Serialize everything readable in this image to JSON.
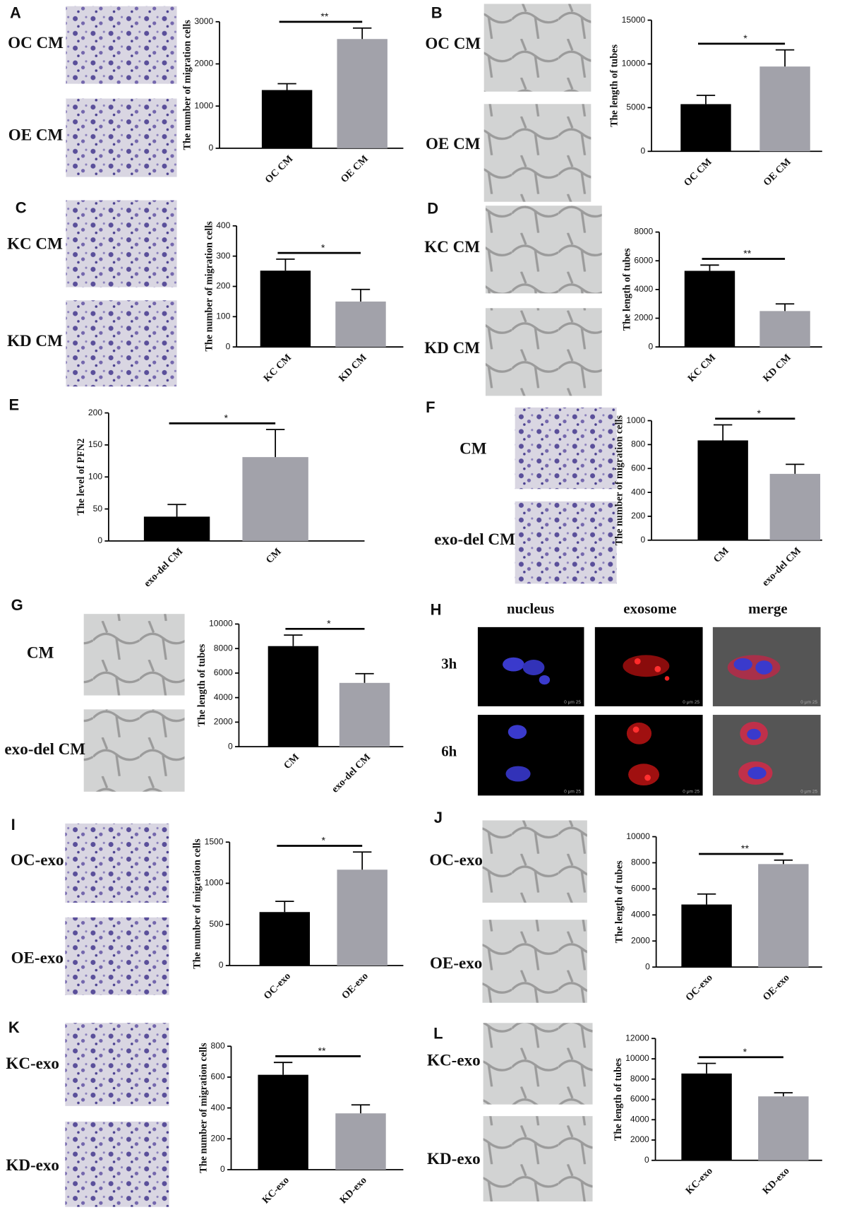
{
  "chart_data": [
    {
      "type": "bar",
      "panel": "A",
      "image_labels": [
        "OC CM",
        "OE CM"
      ],
      "y_label": "The number of migration cells",
      "categories": [
        "OC CM",
        "OE CM"
      ],
      "values": [
        1380,
        2590
      ],
      "errors": [
        150,
        260
      ],
      "colors": [
        "#000000",
        "#a2a2aa"
      ],
      "ylim": [
        0,
        3000
      ],
      "yticks": [
        0,
        1000,
        2000,
        3000
      ],
      "significance": "**"
    },
    {
      "type": "bar",
      "panel": "B",
      "image_labels": [
        "OC CM",
        "OE CM"
      ],
      "y_label": "The length of tubes",
      "categories": [
        "OC CM",
        "OE CM"
      ],
      "values": [
        5400,
        9700
      ],
      "errors": [
        1000,
        1900
      ],
      "colors": [
        "#000000",
        "#a2a2aa"
      ],
      "ylim": [
        0,
        15000
      ],
      "yticks": [
        0,
        5000,
        10000,
        15000
      ],
      "significance": "*"
    },
    {
      "type": "bar",
      "panel": "C",
      "image_labels": [
        "KC CM",
        "KD CM"
      ],
      "y_label": "The number of migration cells",
      "categories": [
        "KC CM",
        "KD CM"
      ],
      "values": [
        252,
        150
      ],
      "errors": [
        38,
        40
      ],
      "colors": [
        "#000000",
        "#a2a2aa"
      ],
      "ylim": [
        0,
        400
      ],
      "yticks": [
        0,
        100,
        200,
        300,
        400
      ],
      "significance": "*"
    },
    {
      "type": "bar",
      "panel": "D",
      "image_labels": [
        "KC CM",
        "KD CM"
      ],
      "y_label": "The length of tubes",
      "categories": [
        "KC CM",
        "KD CM"
      ],
      "values": [
        5300,
        2500
      ],
      "errors": [
        400,
        500
      ],
      "colors": [
        "#000000",
        "#a2a2aa"
      ],
      "ylim": [
        0,
        8000
      ],
      "yticks": [
        0,
        2000,
        4000,
        6000,
        8000
      ],
      "significance": "**"
    },
    {
      "type": "bar",
      "panel": "E",
      "image_labels": [],
      "y_label": "The level of PFN2",
      "categories": [
        "exo-del CM",
        "CM"
      ],
      "values": [
        38,
        131
      ],
      "errors": [
        19,
        43
      ],
      "colors": [
        "#000000",
        "#a2a2aa"
      ],
      "ylim": [
        0,
        200
      ],
      "yticks": [
        0,
        50,
        100,
        150,
        200
      ],
      "significance": "*"
    },
    {
      "type": "bar",
      "panel": "F",
      "image_labels": [
        "CM",
        "exo-del CM"
      ],
      "y_label": "The number of migration cells",
      "categories": [
        "CM",
        "exo-del CM"
      ],
      "values": [
        835,
        555
      ],
      "errors": [
        130,
        80
      ],
      "colors": [
        "#000000",
        "#a2a2aa"
      ],
      "ylim": [
        0,
        1000
      ],
      "yticks": [
        0,
        200,
        400,
        600,
        800,
        1000
      ],
      "significance": "*"
    },
    {
      "type": "bar",
      "panel": "G",
      "image_labels": [
        "CM",
        "exo-del CM"
      ],
      "y_label": "The length of tubes",
      "categories": [
        "CM",
        "exo-del CM"
      ],
      "values": [
        8200,
        5200
      ],
      "errors": [
        900,
        750
      ],
      "colors": [
        "#000000",
        "#a2a2aa"
      ],
      "ylim": [
        0,
        10000
      ],
      "yticks": [
        0,
        2000,
        4000,
        6000,
        8000,
        10000
      ],
      "significance": "*"
    },
    {
      "type": "bar",
      "panel": "I",
      "image_labels": [
        "OC-exo",
        "OE-exo"
      ],
      "y_label": "The number of migration cells",
      "categories": [
        "OC-exo",
        "OE-exo"
      ],
      "values": [
        650,
        1165
      ],
      "errors": [
        130,
        215
      ],
      "colors": [
        "#000000",
        "#a2a2aa"
      ],
      "ylim": [
        0,
        1500
      ],
      "yticks": [
        0,
        500,
        1000,
        1500
      ],
      "significance": "*"
    },
    {
      "type": "bar",
      "panel": "J",
      "image_labels": [
        "OC-exo",
        "OE-exo"
      ],
      "y_label": "The length of tubes",
      "categories": [
        "OC-exo",
        "OE-exo"
      ],
      "values": [
        4800,
        7900
      ],
      "errors": [
        800,
        300
      ],
      "colors": [
        "#000000",
        "#a2a2aa"
      ],
      "ylim": [
        0,
        10000
      ],
      "yticks": [
        0,
        2000,
        4000,
        6000,
        8000,
        10000
      ],
      "significance": "**"
    },
    {
      "type": "bar",
      "panel": "K",
      "image_labels": [
        "KC-exo",
        "KD-exo"
      ],
      "y_label": "The number of migration cells",
      "categories": [
        "KC-exo",
        "KD-exo"
      ],
      "values": [
        615,
        365
      ],
      "errors": [
        80,
        55
      ],
      "colors": [
        "#000000",
        "#a2a2aa"
      ],
      "ylim": [
        0,
        800
      ],
      "yticks": [
        0,
        200,
        400,
        600,
        800
      ],
      "significance": "**"
    },
    {
      "type": "bar",
      "panel": "L",
      "image_labels": [
        "KC-exo",
        "KD-exo"
      ],
      "y_label": "The length of tubes",
      "categories": [
        "KC-exo",
        "KD-exo"
      ],
      "values": [
        8550,
        6300
      ],
      "errors": [
        1000,
        350
      ],
      "colors": [
        "#000000",
        "#a2a2aa"
      ],
      "ylim": [
        0,
        12000
      ],
      "yticks": [
        0,
        2000,
        4000,
        6000,
        8000,
        10000,
        12000
      ],
      "significance": "*"
    }
  ],
  "image_panel": {
    "panel": "H",
    "columns": [
      "nucleus",
      "exosome",
      "merge"
    ],
    "rows": [
      "3h",
      "6h"
    ],
    "scale_label": "0   μm   25"
  }
}
